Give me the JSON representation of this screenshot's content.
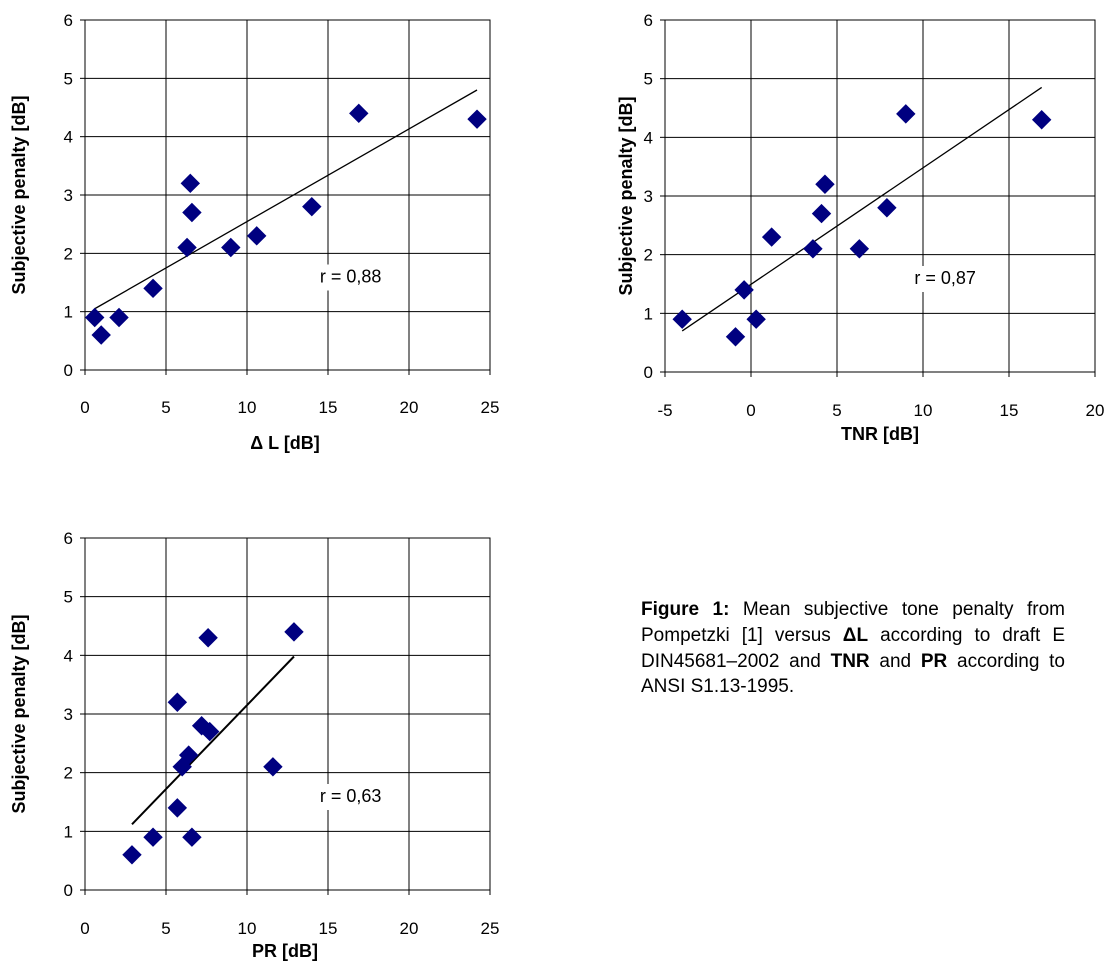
{
  "colors": {
    "marker": "#000080",
    "grid": "#000000",
    "fit_line": "#000000"
  },
  "chart_data": [
    {
      "type": "scatter",
      "xlabel": "Δ L [dB]",
      "ylabel": "Subjective penalty [dB]",
      "xlim": [
        0,
        25
      ],
      "ylim": [
        0,
        6
      ],
      "xticks": [
        "0",
        "5",
        "10",
        "15",
        "20",
        "25"
      ],
      "yticks": [
        "0",
        "1",
        "2",
        "3",
        "4",
        "5",
        "6"
      ],
      "grid": true,
      "points": [
        [
          0.6,
          0.9
        ],
        [
          1.0,
          0.6
        ],
        [
          2.1,
          0.9
        ],
        [
          4.2,
          1.4
        ],
        [
          6.3,
          2.1
        ],
        [
          6.5,
          3.2
        ],
        [
          6.6,
          2.7
        ],
        [
          9.0,
          2.1
        ],
        [
          10.6,
          2.3
        ],
        [
          14.0,
          2.8
        ],
        [
          16.9,
          4.4
        ],
        [
          24.2,
          4.3
        ]
      ],
      "fit_line": [
        [
          0.6,
          1.05
        ],
        [
          24.2,
          4.8
        ]
      ],
      "annotation": "r = 0,88",
      "annotation_pos": [
        14.5,
        1.5
      ]
    },
    {
      "type": "scatter",
      "xlabel": "TNR [dB]",
      "ylabel": "Subjective penalty [dB]",
      "xlim": [
        -5,
        20
      ],
      "ylim": [
        0,
        6
      ],
      "xticks": [
        "-5",
        "0",
        "5",
        "10",
        "15",
        "20"
      ],
      "yticks": [
        "0",
        "1",
        "2",
        "3",
        "4",
        "5",
        "6"
      ],
      "grid": true,
      "points": [
        [
          -4.0,
          0.9
        ],
        [
          -0.9,
          0.6
        ],
        [
          -0.4,
          1.4
        ],
        [
          0.3,
          0.9
        ],
        [
          1.2,
          2.3
        ],
        [
          3.6,
          2.1
        ],
        [
          4.1,
          2.7
        ],
        [
          4.3,
          3.2
        ],
        [
          6.3,
          2.1
        ],
        [
          7.9,
          2.8
        ],
        [
          9.0,
          4.4
        ],
        [
          16.9,
          4.3
        ]
      ],
      "fit_line": [
        [
          -4.0,
          0.7
        ],
        [
          16.9,
          4.85
        ]
      ],
      "annotation": "r = 0,87",
      "annotation_pos": [
        9.5,
        1.5
      ]
    },
    {
      "type": "scatter",
      "xlabel": "PR [dB]",
      "ylabel": "Subjective penalty [dB]",
      "xlim": [
        0,
        25
      ],
      "ylim": [
        0,
        6
      ],
      "xticks": [
        "0",
        "5",
        "10",
        "15",
        "20",
        "25"
      ],
      "yticks": [
        "0",
        "1",
        "2",
        "3",
        "4",
        "5",
        "6"
      ],
      "grid": true,
      "points": [
        [
          2.9,
          0.6
        ],
        [
          4.2,
          0.9
        ],
        [
          5.7,
          1.4
        ],
        [
          5.7,
          3.2
        ],
        [
          6.0,
          2.1
        ],
        [
          6.4,
          2.3
        ],
        [
          6.6,
          0.9
        ],
        [
          7.2,
          2.8
        ],
        [
          7.6,
          4.3
        ],
        [
          7.7,
          2.7
        ],
        [
          11.6,
          2.1
        ],
        [
          12.9,
          4.4
        ]
      ],
      "fit_line": [
        [
          2.9,
          1.12
        ],
        [
          12.9,
          3.98
        ]
      ],
      "annotation": "r = 0,63",
      "annotation_pos": [
        14.5,
        1.5
      ]
    }
  ],
  "caption": {
    "prefix": "Figure 1:",
    "part1": " Mean subjective tone penalty from Pompetzki [1] versus ",
    "bold1": "ΔL",
    "part2": " according to draft E DIN45681–2002 and ",
    "bold2": "TNR",
    "part3": " and ",
    "bold3": "PR",
    "part4": " according to ANSI S1.13-1995."
  }
}
